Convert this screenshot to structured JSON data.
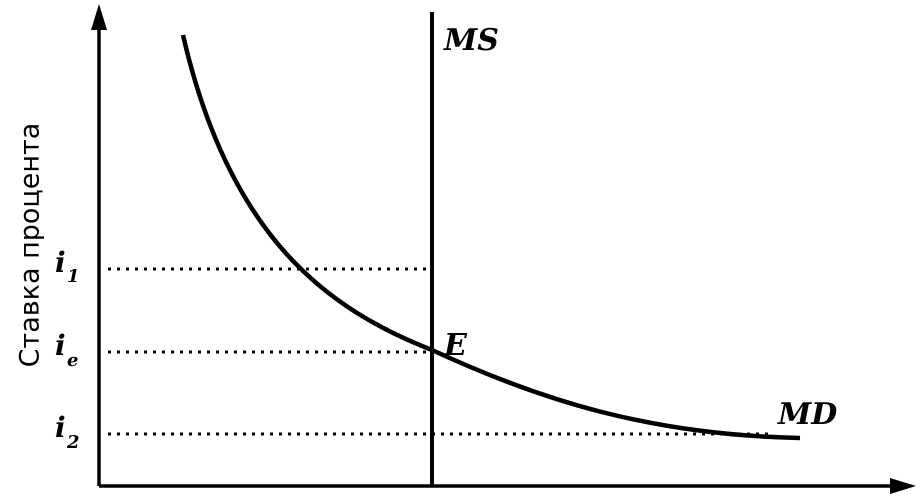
{
  "y_axis_label": "Ставка процента",
  "curves": {
    "supply": "MS",
    "demand": "MD"
  },
  "equilibrium_point": "E",
  "rate_levels": [
    {
      "base": "i",
      "sub": "1"
    },
    {
      "base": "i",
      "sub": "e"
    },
    {
      "base": "i",
      "sub": "2"
    }
  ],
  "colors": {
    "ink": "#000000",
    "background": "#ffffff"
  }
}
